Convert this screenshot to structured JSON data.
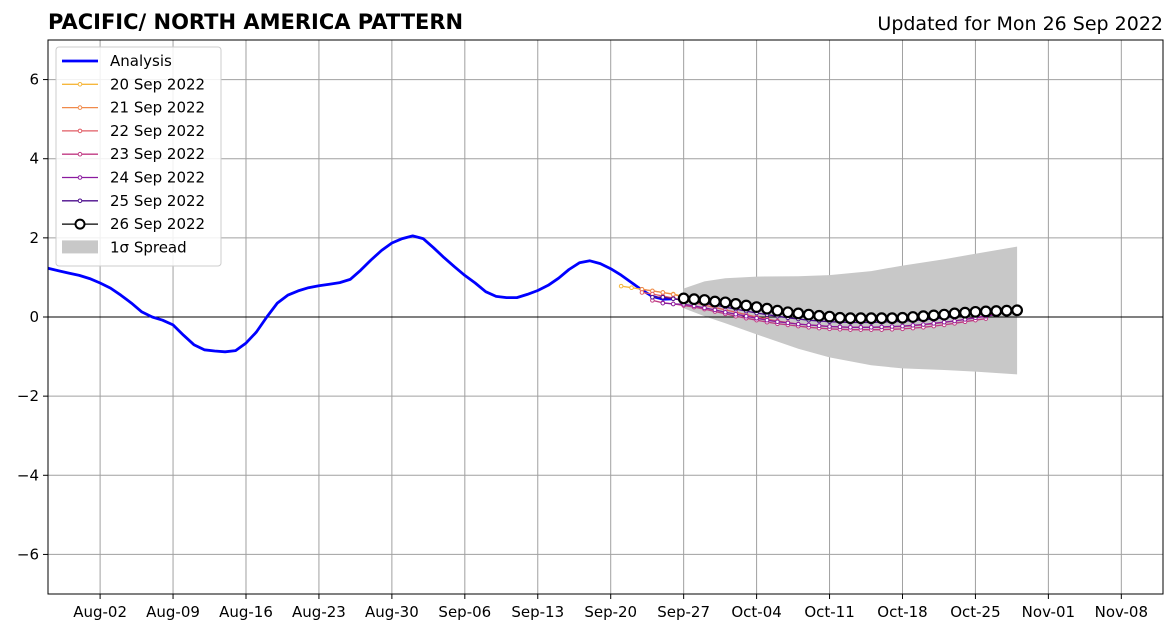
{
  "chart_data": {
    "type": "line",
    "title": "PACIFIC/ NORTH AMERICA PATTERN",
    "subtitle": "Updated for Mon 26 Sep 2022",
    "xlabel": "",
    "ylabel": "",
    "x_range": [
      "2022-07-28",
      "2022-11-12"
    ],
    "ylim": [
      -7,
      7
    ],
    "x_ticks": [
      {
        "date": "2022-08-02",
        "label": "Aug-02"
      },
      {
        "date": "2022-08-09",
        "label": "Aug-09"
      },
      {
        "date": "2022-08-16",
        "label": "Aug-16"
      },
      {
        "date": "2022-08-23",
        "label": "Aug-23"
      },
      {
        "date": "2022-08-30",
        "label": "Aug-30"
      },
      {
        "date": "2022-09-06",
        "label": "Sep-06"
      },
      {
        "date": "2022-09-13",
        "label": "Sep-13"
      },
      {
        "date": "2022-09-20",
        "label": "Sep-20"
      },
      {
        "date": "2022-09-27",
        "label": "Sep-27"
      },
      {
        "date": "2022-10-04",
        "label": "Oct-04"
      },
      {
        "date": "2022-10-11",
        "label": "Oct-11"
      },
      {
        "date": "2022-10-18",
        "label": "Oct-18"
      },
      {
        "date": "2022-10-25",
        "label": "Oct-25"
      },
      {
        "date": "2022-11-01",
        "label": "Nov-01"
      },
      {
        "date": "2022-11-08",
        "label": "Nov-08"
      }
    ],
    "y_ticks": [
      {
        "value": 6,
        "label": "6"
      },
      {
        "value": 4,
        "label": "4"
      },
      {
        "value": 2,
        "label": "2"
      },
      {
        "value": 0,
        "label": "0"
      },
      {
        "value": -2,
        "label": "−2"
      },
      {
        "value": -4,
        "label": "−4"
      },
      {
        "value": -6,
        "label": "−6"
      }
    ],
    "grid": true,
    "legend_position": "top-left",
    "analysis": {
      "name": "Analysis",
      "color": "#0000ff",
      "x": [
        "2022-07-28",
        "2022-07-29",
        "2022-07-30",
        "2022-07-31",
        "2022-08-01",
        "2022-08-02",
        "2022-08-03",
        "2022-08-04",
        "2022-08-05",
        "2022-08-06",
        "2022-08-07",
        "2022-08-08",
        "2022-08-09",
        "2022-08-10",
        "2022-08-11",
        "2022-08-12",
        "2022-08-13",
        "2022-08-14",
        "2022-08-15",
        "2022-08-16",
        "2022-08-17",
        "2022-08-18",
        "2022-08-19",
        "2022-08-20",
        "2022-08-21",
        "2022-08-22",
        "2022-08-23",
        "2022-08-24",
        "2022-08-25",
        "2022-08-26",
        "2022-08-27",
        "2022-08-28",
        "2022-08-29",
        "2022-08-30",
        "2022-08-31",
        "2022-09-01",
        "2022-09-02",
        "2022-09-03",
        "2022-09-04",
        "2022-09-05",
        "2022-09-06",
        "2022-09-07",
        "2022-09-08",
        "2022-09-09",
        "2022-09-10",
        "2022-09-11",
        "2022-09-12",
        "2022-09-13",
        "2022-09-14",
        "2022-09-15",
        "2022-09-16",
        "2022-09-17",
        "2022-09-18",
        "2022-09-19",
        "2022-09-20",
        "2022-09-21",
        "2022-09-22",
        "2022-09-23",
        "2022-09-24",
        "2022-09-25",
        "2022-09-26"
      ],
      "y": [
        1.23,
        1.17,
        1.11,
        1.05,
        0.97,
        0.86,
        0.73,
        0.55,
        0.35,
        0.13,
        0.0,
        -0.08,
        -0.2,
        -0.46,
        -0.7,
        -0.83,
        -0.86,
        -0.88,
        -0.85,
        -0.66,
        -0.38,
        0.0,
        0.35,
        0.55,
        0.66,
        0.74,
        0.79,
        0.83,
        0.87,
        0.95,
        1.18,
        1.44,
        1.68,
        1.87,
        1.98,
        2.05,
        1.98,
        1.75,
        1.5,
        1.27,
        1.05,
        0.86,
        0.64,
        0.52,
        0.49,
        0.49,
        0.57,
        0.67,
        0.8,
        0.98,
        1.2,
        1.37,
        1.42,
        1.35,
        1.22,
        1.06,
        0.87,
        0.68,
        0.52,
        0.45,
        0.46
      ]
    },
    "forecasts": [
      {
        "name": "20 Sep 2022",
        "color": "#f6b73c",
        "x": [
          "2022-09-21",
          "2022-09-22",
          "2022-09-23",
          "2022-09-24",
          "2022-09-25",
          "2022-09-26",
          "2022-09-27"
        ],
        "y": [
          0.78,
          0.74,
          0.7,
          0.66,
          0.62,
          0.58,
          0.52
        ]
      },
      {
        "name": "21 Sep 2022",
        "color": "#f08a4b",
        "x": [
          "2022-09-23",
          "2022-09-24",
          "2022-09-25",
          "2022-09-26",
          "2022-09-27",
          "2022-09-28"
        ],
        "y": [
          0.7,
          0.66,
          0.62,
          0.57,
          0.5,
          0.42
        ]
      },
      {
        "name": "22 Sep 2022",
        "color": "#e15b64",
        "x": [
          "2022-09-23",
          "2022-09-24",
          "2022-09-25",
          "2022-09-26",
          "2022-09-27",
          "2022-09-28",
          "2022-09-29",
          "2022-09-30",
          "2022-10-01",
          "2022-10-02",
          "2022-10-03",
          "2022-10-04",
          "2022-10-05",
          "2022-10-06",
          "2022-10-07",
          "2022-10-08",
          "2022-10-09",
          "2022-10-10",
          "2022-10-11",
          "2022-10-12",
          "2022-10-13",
          "2022-10-14",
          "2022-10-15",
          "2022-10-16",
          "2022-10-17",
          "2022-10-18",
          "2022-10-19",
          "2022-10-20",
          "2022-10-21",
          "2022-10-22",
          "2022-10-23",
          "2022-10-24",
          "2022-10-25",
          "2022-10-26",
          "2022-10-27"
        ],
        "y": [
          0.62,
          0.58,
          0.53,
          0.48,
          0.42,
          0.36,
          0.3,
          0.24,
          0.18,
          0.12,
          0.06,
          0.0,
          -0.05,
          -0.1,
          -0.14,
          -0.18,
          -0.2,
          -0.22,
          -0.24,
          -0.25,
          -0.26,
          -0.26,
          -0.26,
          -0.26,
          -0.25,
          -0.24,
          -0.22,
          -0.2,
          -0.17,
          -0.14,
          -0.1,
          -0.06,
          -0.02,
          0.03,
          0.08
        ]
      },
      {
        "name": "23 Sep 2022",
        "color": "#c03a83",
        "x": [
          "2022-09-24",
          "2022-09-25",
          "2022-09-26",
          "2022-09-27",
          "2022-09-28",
          "2022-09-29",
          "2022-09-30",
          "2022-10-01",
          "2022-10-02",
          "2022-10-03",
          "2022-10-04",
          "2022-10-05",
          "2022-10-06",
          "2022-10-07",
          "2022-10-08",
          "2022-10-09",
          "2022-10-10",
          "2022-10-11",
          "2022-10-12",
          "2022-10-13",
          "2022-10-14",
          "2022-10-15",
          "2022-10-16",
          "2022-10-17",
          "2022-10-18",
          "2022-10-19",
          "2022-10-20",
          "2022-10-21",
          "2022-10-22",
          "2022-10-23",
          "2022-10-24",
          "2022-10-25",
          "2022-10-26"
        ],
        "y": [
          0.42,
          0.36,
          0.33,
          0.29,
          0.25,
          0.2,
          0.14,
          0.08,
          0.02,
          -0.03,
          -0.08,
          -0.13,
          -0.17,
          -0.2,
          -0.23,
          -0.26,
          -0.28,
          -0.3,
          -0.31,
          -0.32,
          -0.32,
          -0.32,
          -0.32,
          -0.31,
          -0.3,
          -0.28,
          -0.26,
          -0.23,
          -0.2,
          -0.16,
          -0.12,
          -0.08,
          -0.04
        ]
      },
      {
        "name": "24 Sep 2022",
        "color": "#8b1a9f",
        "x": [
          "2022-09-25",
          "2022-09-26",
          "2022-09-27",
          "2022-09-28",
          "2022-09-29",
          "2022-09-30",
          "2022-10-01",
          "2022-10-02",
          "2022-10-03",
          "2022-10-04",
          "2022-10-05",
          "2022-10-06",
          "2022-10-07",
          "2022-10-08",
          "2022-10-09",
          "2022-10-10",
          "2022-10-11",
          "2022-10-12",
          "2022-10-13",
          "2022-10-14",
          "2022-10-15",
          "2022-10-16",
          "2022-10-17",
          "2022-10-18",
          "2022-10-19",
          "2022-10-20",
          "2022-10-21",
          "2022-10-22",
          "2022-10-23",
          "2022-10-24",
          "2022-10-25",
          "2022-10-26",
          "2022-10-27"
        ],
        "y": [
          0.35,
          0.33,
          0.32,
          0.28,
          0.23,
          0.18,
          0.12,
          0.07,
          0.02,
          -0.03,
          -0.08,
          -0.12,
          -0.15,
          -0.18,
          -0.2,
          -0.22,
          -0.24,
          -0.25,
          -0.26,
          -0.26,
          -0.26,
          -0.25,
          -0.24,
          -0.23,
          -0.21,
          -0.19,
          -0.16,
          -0.13,
          -0.1,
          -0.06,
          -0.02,
          0.02,
          0.06
        ]
      },
      {
        "name": "25 Sep 2022",
        "color": "#4b0c8c",
        "x": [
          "2022-09-24",
          "2022-09-25",
          "2022-09-26",
          "2022-09-27",
          "2022-09-28",
          "2022-09-29",
          "2022-09-30",
          "2022-10-01",
          "2022-10-02",
          "2022-10-03",
          "2022-10-04",
          "2022-10-05",
          "2022-10-06",
          "2022-10-07",
          "2022-10-08",
          "2022-10-09",
          "2022-10-10",
          "2022-10-11",
          "2022-10-12",
          "2022-10-13",
          "2022-10-14",
          "2022-10-15",
          "2022-10-16",
          "2022-10-17",
          "2022-10-18",
          "2022-10-19",
          "2022-10-20",
          "2022-10-21",
          "2022-10-22",
          "2022-10-23",
          "2022-10-24",
          "2022-10-25",
          "2022-10-26",
          "2022-10-27"
        ],
        "y": [
          0.5,
          0.5,
          0.46,
          0.42,
          0.38,
          0.34,
          0.3,
          0.25,
          0.2,
          0.15,
          0.1,
          0.06,
          0.02,
          -0.02,
          -0.05,
          -0.08,
          -0.1,
          -0.12,
          -0.13,
          -0.14,
          -0.14,
          -0.14,
          -0.13,
          -0.12,
          -0.11,
          -0.09,
          -0.07,
          -0.05,
          -0.02,
          0.01,
          0.04,
          0.07,
          0.1,
          0.13
        ]
      },
      {
        "name": "26 Sep 2022",
        "color": "#000000",
        "x": [
          "2022-09-27",
          "2022-09-28",
          "2022-09-29",
          "2022-09-30",
          "2022-10-01",
          "2022-10-02",
          "2022-10-03",
          "2022-10-04",
          "2022-10-05",
          "2022-10-06",
          "2022-10-07",
          "2022-10-08",
          "2022-10-09",
          "2022-10-10",
          "2022-10-11",
          "2022-10-12",
          "2022-10-13",
          "2022-10-14",
          "2022-10-15",
          "2022-10-16",
          "2022-10-17",
          "2022-10-18",
          "2022-10-19",
          "2022-10-20",
          "2022-10-21",
          "2022-10-22",
          "2022-10-23",
          "2022-10-24",
          "2022-10-25",
          "2022-10-26",
          "2022-10-27",
          "2022-10-28",
          "2022-10-29"
        ],
        "y": [
          0.47,
          0.45,
          0.43,
          0.39,
          0.37,
          0.33,
          0.29,
          0.25,
          0.21,
          0.16,
          0.12,
          0.09,
          0.06,
          0.03,
          0.01,
          -0.02,
          -0.03,
          -0.03,
          -0.03,
          -0.03,
          -0.03,
          -0.02,
          0.0,
          0.02,
          0.04,
          0.06,
          0.09,
          0.11,
          0.13,
          0.14,
          0.15,
          0.16,
          0.17
        ]
      }
    ],
    "spread": {
      "name": "1σ Spread",
      "color": "#c8c8c8",
      "x": [
        "2022-09-27",
        "2022-09-29",
        "2022-10-01",
        "2022-10-04",
        "2022-10-08",
        "2022-10-11",
        "2022-10-15",
        "2022-10-18",
        "2022-10-22",
        "2022-10-25",
        "2022-10-29"
      ],
      "upper": [
        0.72,
        0.9,
        0.98,
        1.02,
        1.03,
        1.06,
        1.16,
        1.3,
        1.46,
        1.6,
        1.78
      ],
      "lower": [
        0.22,
        0.02,
        -0.16,
        -0.44,
        -0.8,
        -1.02,
        -1.22,
        -1.3,
        -1.34,
        -1.38,
        -1.45
      ]
    }
  }
}
